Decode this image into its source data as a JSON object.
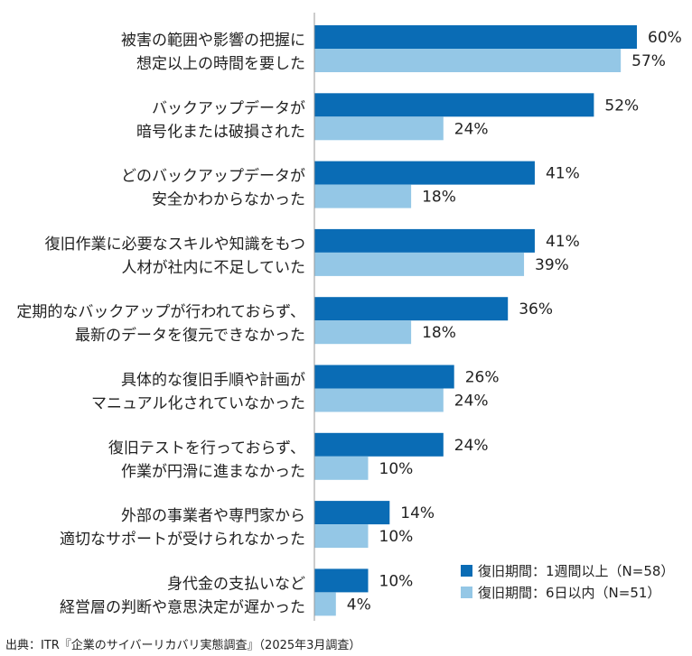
{
  "chart_data": {
    "type": "bar",
    "orientation": "horizontal",
    "categories": [
      [
        "被害の範囲や影響の把握に",
        "想定以上の時間を要した"
      ],
      [
        "バックアップデータが",
        "暗号化または破損された"
      ],
      [
        "どのバックアップデータが",
        "安全かわからなかった"
      ],
      [
        "復旧作業に必要なスキルや知識をもつ",
        "人材が社内に不足していた"
      ],
      [
        "定期的なバックアップが行われておらず、",
        "最新のデータを復元できなかった"
      ],
      [
        "具体的な復旧手順や計画が",
        "マニュアル化されていなかった"
      ],
      [
        "復旧テストを行っておらず、",
        "作業が円滑に進まなかった"
      ],
      [
        "外部の事業者や専門家から",
        "適切なサポートが受けられなかった"
      ],
      [
        "身代金の支払いなど",
        "経営層の判断や意思決定が遅かった"
      ]
    ],
    "series": [
      {
        "name": "復旧期間：1週間以上（N=58）",
        "color": "#0a6cb5",
        "values": [
          60,
          52,
          41,
          41,
          36,
          26,
          24,
          14,
          10
        ]
      },
      {
        "name": "復旧期間：6日以内（N=51）",
        "color": "#94c7e6",
        "values": [
          57,
          24,
          18,
          39,
          18,
          24,
          10,
          10,
          4
        ]
      }
    ],
    "value_suffix": "%",
    "xlim": [
      0,
      100
    ],
    "legend_position": "bottom-right",
    "grid": false
  },
  "source": "出典：ITR『企業のサイバーリカバリ実態調査』（2025年3月調査）"
}
